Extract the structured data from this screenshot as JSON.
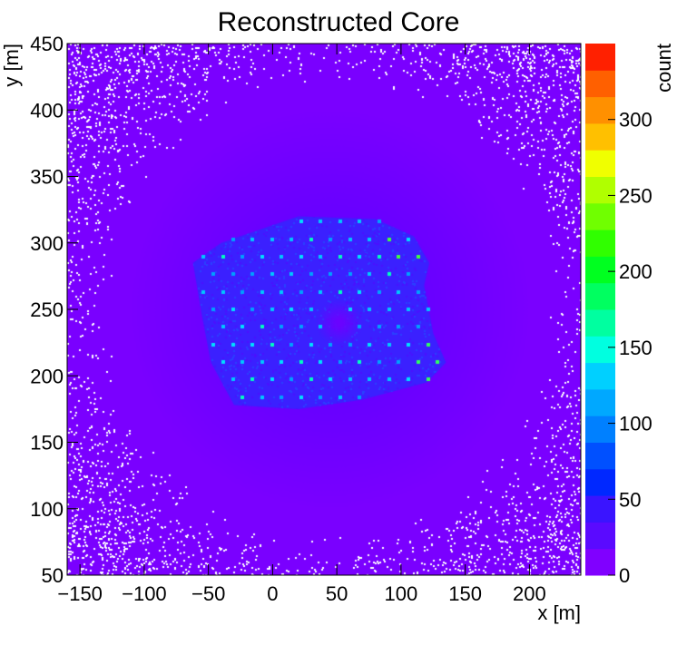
{
  "chart_data": {
    "type": "heatmap",
    "title": "Reconstructed Core",
    "xlabel": "x [m]",
    "ylabel": "y [m]",
    "zlabel": "count",
    "xlim": [
      -160,
      240
    ],
    "ylim": [
      50,
      450
    ],
    "zlim": [
      0,
      350
    ],
    "x_ticks": [
      -150,
      -100,
      -50,
      0,
      50,
      100,
      150,
      200
    ],
    "y_ticks": [
      50,
      100,
      150,
      200,
      250,
      300,
      350,
      400,
      450
    ],
    "z_ticks": [
      0,
      50,
      100,
      150,
      200,
      250,
      300
    ],
    "palette": [
      "#8000ff",
      "#5a0aff",
      "#3a14ff",
      "#0028ff",
      "#0050ff",
      "#0080ff",
      "#00a8ff",
      "#00d0ff",
      "#00ffe0",
      "#00ffa0",
      "#00ff60",
      "#00ff20",
      "#30ff00",
      "#70ff00",
      "#b0ff00",
      "#f0ff00",
      "#ffc000",
      "#ff9000",
      "#ff6000",
      "#ff2000"
    ],
    "description_regions": {
      "background_count": "0-5",
      "detector_array_center": [
        45,
        250
      ],
      "detector_array_peak_count": 230,
      "central_gap_center": [
        52,
        240
      ]
    }
  }
}
